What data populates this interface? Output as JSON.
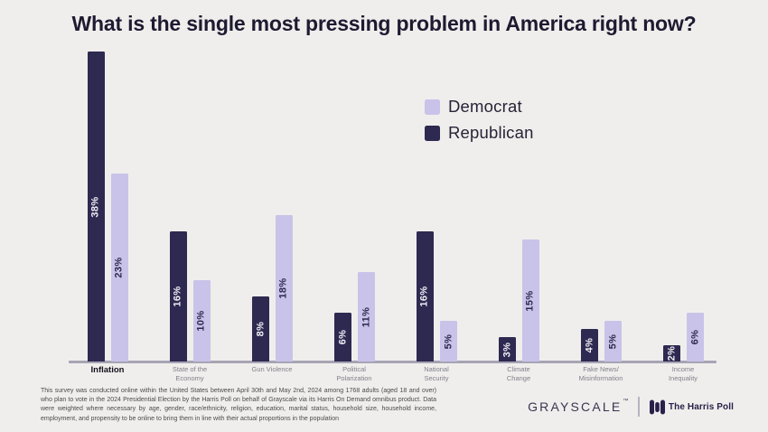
{
  "page": {
    "background": "#efeeec",
    "title": "What is the single most pressing problem in America right now?"
  },
  "legend": {
    "items": [
      {
        "label": "Democrat",
        "color": "#c9c3e9"
      },
      {
        "label": "Republican",
        "color": "#2e2950"
      }
    ]
  },
  "chart_data": {
    "type": "bar",
    "title": "What is the single most pressing problem in America right now?",
    "categories": [
      "Inflation",
      "State of the\nEconomy",
      "Gun Violence",
      "Political\nPolarization",
      "National\nSecurity",
      "Climate\nChange",
      "Fake News/\nMisinformation",
      "Income\nInequality"
    ],
    "series": [
      {
        "name": "Democrat",
        "color": "#c9c3e9",
        "label_color": "#2e2950",
        "values": [
          23,
          10,
          18,
          11,
          5,
          15,
          5,
          6
        ]
      },
      {
        "name": "Republican",
        "color": "#2e2950",
        "label_color": "#f0eef6",
        "values": [
          38,
          16,
          8,
          6,
          16,
          3,
          4,
          2
        ]
      }
    ],
    "value_suffix": "%",
    "ylim": [
      0,
      38
    ],
    "grid": false,
    "y_axis_labels": false,
    "legend_position": "top-right",
    "bar_draw_order": [
      "Republican",
      "Democrat"
    ],
    "emphasized_category": "Inflation"
  },
  "footer": {
    "disclaimer": "This survey was conducted online within the United States between April 30th and May 2nd, 2024 among 1768 adults (aged 18 and over) who plan to vote in the 2024 Presidential Election by the Harris Poll on behalf of Grayscale via its Harris On Demand omnibus product. Data were weighted where necessary by age, gender, race/ethnicity, religion, education, marital status, household size, household income, employment, and propensity to be online to bring them in line with their actual proportions in the population",
    "grayscale_logo": "GRAYSCALE",
    "grayscale_trademark": "™",
    "harris_poll_logo": "The Harris Poll"
  }
}
